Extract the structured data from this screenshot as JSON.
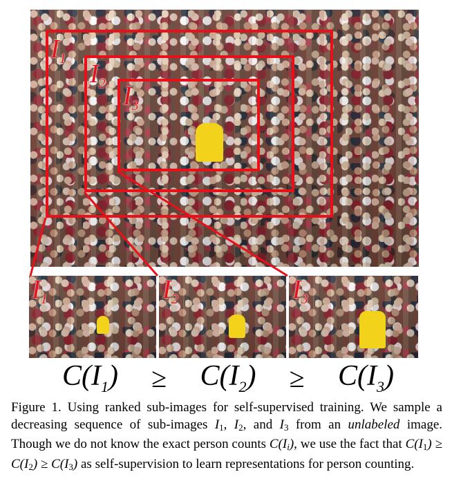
{
  "figure": {
    "main_labels": {
      "i1": "I",
      "i1_sub": "1",
      "i2": "I",
      "i2_sub": "2",
      "i3": "I",
      "i3_sub": "3"
    },
    "box_color": "#e8111a",
    "thumbnails": [
      {
        "label": "I",
        "sub": "1"
      },
      {
        "label": "I",
        "sub": "2"
      },
      {
        "label": "I",
        "sub": "3"
      }
    ],
    "inequality": {
      "t1": "C(I",
      "s1": "1",
      "c1": ")",
      "op1": "≥",
      "t2": "C(I",
      "s2": "2",
      "c2": ")",
      "op2": "≥",
      "t3": "C(I",
      "s3": "3",
      "c3": ")"
    }
  },
  "caption": {
    "p1": "Figure 1. Using ranked sub-images for self-supervised training. We sample a decreasing sequence of sub-images ",
    "v1": "I",
    "v1s": "1",
    "sep1": ", ",
    "v2": "I",
    "v2s": "2",
    "sep2": ", and ",
    "v3": "I",
    "v3s": "3",
    "p2": " from an ",
    "em": "unlabeled",
    "p3": " image. Though we do not know the exact person counts ",
    "ci": "C(I",
    "cis": "i",
    "cic": ")",
    "p4": ", we use the fact that ",
    "r1": "C(I",
    "r1s": "1",
    "r1c": ") ≥ C(I",
    "r2s": "2",
    "r2c": ") ≥ C(I",
    "r3s": "3",
    "r3c": ")",
    "p5": " as self-supervision to learn representations for person counting."
  }
}
